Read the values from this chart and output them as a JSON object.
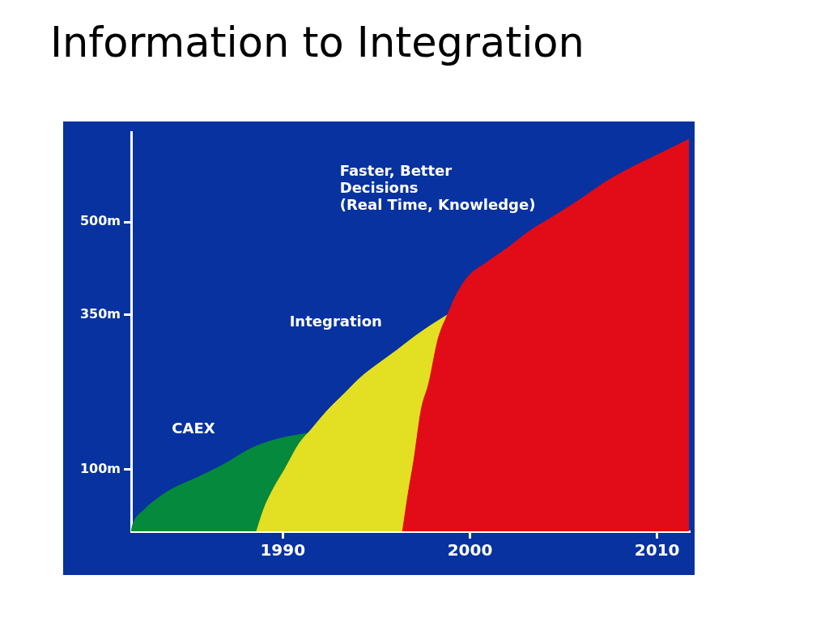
{
  "chart_data": {
    "type": "area",
    "title": "Information to Integration",
    "xlim": [
      1981.9,
      2011.7
    ],
    "xticks": [
      1990,
      2000,
      2010
    ],
    "ylim": [
      0,
      645
    ],
    "yticks": [
      {
        "value": 100,
        "label": "100m"
      },
      {
        "value": 350,
        "label": "350m"
      },
      {
        "value": 500,
        "label": "500m"
      }
    ],
    "series": [
      {
        "name": "CAEX",
        "color": "#05893c",
        "x": [
          1981.9,
          1982.0,
          1982.6,
          1983.3,
          1984.0,
          1985.5,
          1986.9,
          1988.3,
          1989.7,
          1991.4
        ],
        "values": [
          0,
          12,
          35,
          53,
          67,
          88,
          109,
          134,
          149,
          159
        ]
      },
      {
        "name": "Integration",
        "color": "#e3df22",
        "x": [
          1988.6,
          1989.0,
          1989.5,
          1990.1,
          1990.9,
          1991.5,
          1992.4,
          1993.3,
          1994.2,
          1995.1,
          1996.1,
          1997.0,
          1997.9,
          1998.8
        ],
        "values": [
          0,
          37,
          69,
          100,
          143,
          164,
          196,
          223,
          250,
          271,
          293,
          314,
          333,
          350
        ]
      },
      {
        "name": "Faster, Better\nDecisions\n(Real Time, Knowledge)",
        "color": "#e20c18",
        "x": [
          1996.4,
          1996.7,
          1997.0,
          1997.4,
          1997.8,
          1998.3,
          1998.8,
          1999.3,
          1999.9,
          2000.9,
          2002.0,
          2003.2,
          2004.5,
          2005.7,
          2007.3,
          2008.8,
          2010.3,
          2011.7
        ],
        "values": [
          0,
          61,
          114,
          197,
          239,
          311,
          350,
          384,
          412,
          435,
          458,
          486,
          510,
          533,
          566,
          591,
          613,
          634
        ]
      }
    ]
  }
}
